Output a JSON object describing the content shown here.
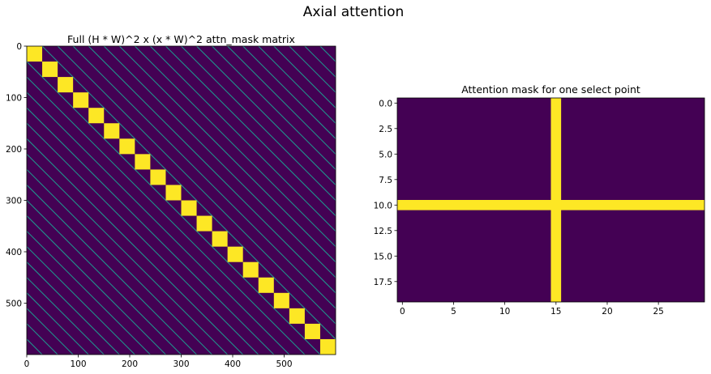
{
  "figure": {
    "suptitle": "Axial attention"
  },
  "chart_data": [
    {
      "type": "heatmap",
      "title": "Full (H * W)^2 x (x * W)^2 attn_mask matrix",
      "grid_height": 20,
      "grid_width": 30,
      "matrix_size": 600,
      "xlim": [
        0,
        600
      ],
      "ylim": [
        600,
        0
      ],
      "xticks": [
        0,
        100,
        200,
        300,
        400,
        500
      ],
      "yticks": [
        0,
        100,
        200,
        300,
        400,
        500
      ],
      "xtick_labels": [
        "0",
        "100",
        "200",
        "300",
        "400",
        "500"
      ],
      "ytick_labels": [
        "0",
        "100",
        "200",
        "300",
        "400",
        "500"
      ],
      "diagonal_blocks": 20,
      "block_size": 30,
      "colormap": {
        "low": "#440154",
        "high": "#fde725",
        "mid": "#21918c"
      }
    },
    {
      "type": "heatmap",
      "title": "Attention mask for one select point",
      "rows": 20,
      "cols": 30,
      "selected_point": {
        "row": 10,
        "col": 15
      },
      "xlim": [
        -0.5,
        29.5
      ],
      "ylim": [
        19.5,
        -0.5
      ],
      "xticks": [
        0,
        5,
        10,
        15,
        20,
        25
      ],
      "yticks": [
        0,
        2.5,
        5,
        7.5,
        10,
        12.5,
        15,
        17.5
      ],
      "xtick_labels": [
        "0",
        "5",
        "10",
        "15",
        "20",
        "25"
      ],
      "ytick_labels": [
        "0.0",
        "2.5",
        "5.0",
        "7.5",
        "10.0",
        "12.5",
        "15.0",
        "17.5"
      ],
      "colormap": {
        "low": "#440154",
        "high": "#fde725"
      }
    }
  ]
}
